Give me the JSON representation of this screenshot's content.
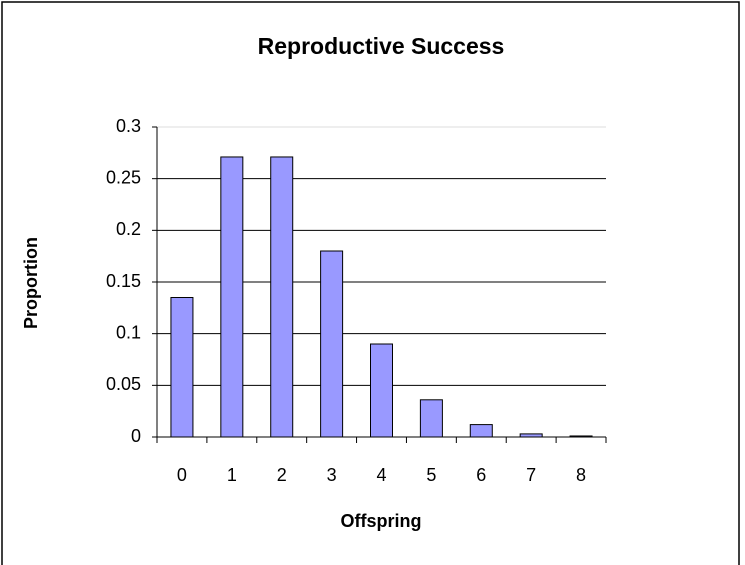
{
  "chart_data": {
    "type": "bar",
    "title": "Reproductive Success",
    "x_label": "Offspring",
    "y_label": "Proportion",
    "categories": [
      "0",
      "1",
      "2",
      "3",
      "4",
      "5",
      "6",
      "7",
      "8"
    ],
    "values": [
      0.135,
      0.271,
      0.271,
      0.18,
      0.09,
      0.036,
      0.012,
      0.003,
      0.001
    ],
    "color": "#9999ff",
    "ylim": [
      0,
      0.3
    ],
    "yticks": [
      0,
      0.05,
      0.1,
      0.15,
      0.2,
      0.25,
      0.3
    ],
    "grid": true
  }
}
